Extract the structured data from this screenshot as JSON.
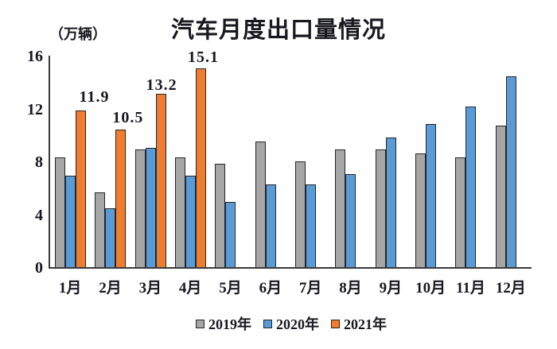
{
  "chart": {
    "title": "汽车月度出口量情况",
    "unit_label": "（万辆）"
  },
  "chart_data": {
    "type": "bar",
    "title": "汽车月度出口量情况",
    "unit": "万辆",
    "categories": [
      "1月",
      "2月",
      "3月",
      "4月",
      "5月",
      "6月",
      "7月",
      "8月",
      "9月",
      "10月",
      "11月",
      "12月"
    ],
    "series": [
      {
        "name": "2019年",
        "color": "#A6A6A6",
        "values": [
          8.4,
          5.7,
          9.0,
          8.4,
          7.9,
          9.6,
          8.1,
          9.0,
          9.0,
          8.7,
          8.4,
          10.8
        ]
      },
      {
        "name": "2020年",
        "color": "#5B9BD5",
        "values": [
          7.0,
          4.5,
          9.1,
          7.0,
          5.0,
          6.3,
          6.3,
          7.1,
          9.9,
          10.9,
          12.2,
          14.5
        ]
      },
      {
        "name": "2021年",
        "color": "#ED7D31",
        "data_labels": true,
        "values": [
          11.9,
          10.5,
          13.2,
          15.1,
          null,
          null,
          null,
          null,
          null,
          null,
          null,
          null
        ]
      }
    ],
    "shown_data_labels": [
      "11.9",
      "10.5",
      "13.2",
      "15.1"
    ],
    "ylim": [
      0,
      16
    ],
    "yticks": [
      0,
      4,
      8,
      12,
      16
    ],
    "grid": false,
    "legend_position": "bottom",
    "bar_outline_color": "#262626",
    "axis_color": "#3a3a3a",
    "text_color": "#18181f"
  }
}
